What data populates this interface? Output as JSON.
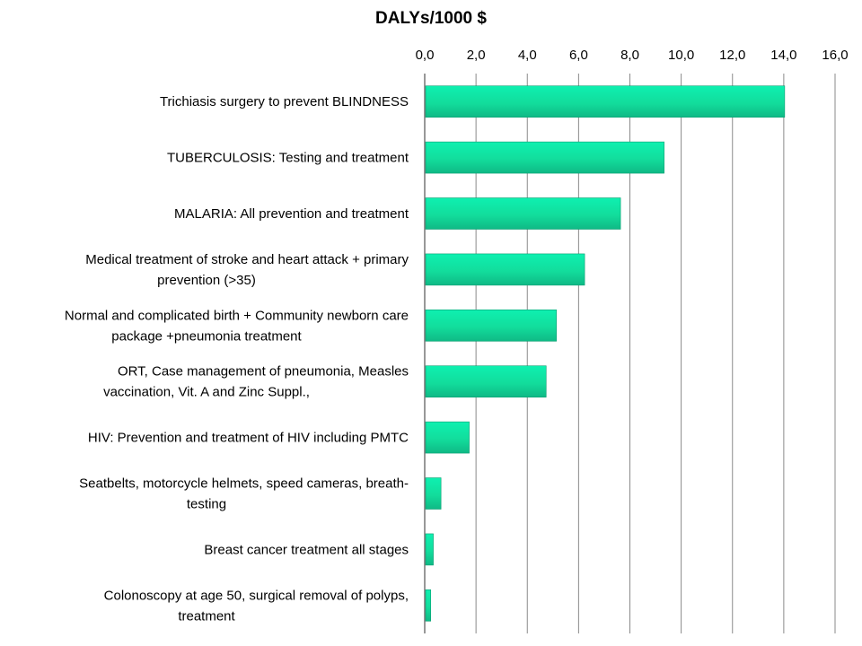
{
  "chart_data": {
    "type": "bar",
    "orientation": "horizontal",
    "title": "DALYs/1000  $",
    "xlabel": "",
    "ylabel": "",
    "xlim": [
      0,
      16
    ],
    "x_ticks": [
      "0,0",
      "2,0",
      "4,0",
      "6,0",
      "8,0",
      "10,0",
      "12,0",
      "14,0",
      "16,0"
    ],
    "x_axis_position": "top",
    "grid": "vertical",
    "legend": "none",
    "bar_color": "#12e3a0",
    "categories": [
      [
        "Trichiasis surgery to prevent BLINDNESS"
      ],
      [
        "TUBERCULOSIS: Testing and treatment"
      ],
      [
        "MALARIA: All prevention and treatment"
      ],
      [
        "Medical treatment of stroke and heart attack + primary",
        "prevention (>35)"
      ],
      [
        "Normal and complicated birth + Community newborn care",
        "package +pneumonia treatment"
      ],
      [
        "ORT, Case management of pneumonia, Measles",
        "vaccination, Vit. A and Zinc Suppl.,"
      ],
      [
        "HIV: Prevention and treatment of HIV including PMTC"
      ],
      [
        "Seatbelts, motorcycle helmets, speed cameras, breath-",
        "testing"
      ],
      [
        "Breast cancer treatment all stages"
      ],
      [
        "Colonoscopy at age 50, surgical removal of polyps,",
        "treatment"
      ]
    ],
    "values": [
      14.0,
      9.3,
      7.6,
      6.2,
      5.1,
      4.7,
      1.7,
      0.6,
      0.3,
      0.2
    ]
  }
}
